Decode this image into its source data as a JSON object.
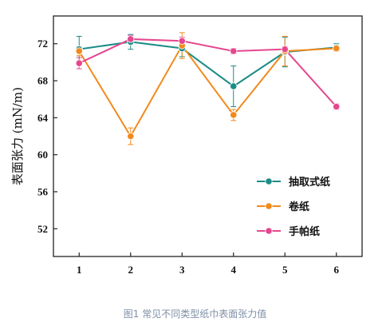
{
  "chart_data": {
    "type": "line",
    "x": [
      1,
      2,
      3,
      4,
      5,
      6
    ],
    "xlabel": "",
    "ylabel": "表面张力 (mN/m)",
    "ylim": [
      49,
      75
    ],
    "xlim": [
      0.5,
      6.5
    ],
    "yticks": [
      52,
      56,
      60,
      64,
      68,
      72
    ],
    "xticks": [
      1,
      2,
      3,
      4,
      5,
      6
    ],
    "grid": false,
    "legend_position": "bottom-right",
    "series": [
      {
        "name": "抽取式纸",
        "color": "#1a8c86",
        "values": [
          71.4,
          72.2,
          71.5,
          67.4,
          71.1,
          71.6
        ],
        "errors": [
          1.4,
          0.8,
          0.9,
          2.2,
          1.6,
          0.4
        ]
      },
      {
        "name": "卷纸",
        "color": "#f28a1c",
        "values": [
          71.2,
          62.0,
          71.8,
          64.3,
          71.2,
          71.5
        ],
        "errors": [
          0.5,
          0.9,
          1.4,
          0.6,
          1.6,
          0.3
        ]
      },
      {
        "name": "手帕纸",
        "color": "#e5478e",
        "values": [
          69.9,
          72.5,
          72.3,
          71.2,
          71.4,
          65.2
        ],
        "errors": [
          0.6,
          0.4,
          0.4,
          0.3,
          0.3,
          0.3
        ]
      }
    ]
  },
  "caption": "图1 常见不同类型纸巾表面张力值"
}
